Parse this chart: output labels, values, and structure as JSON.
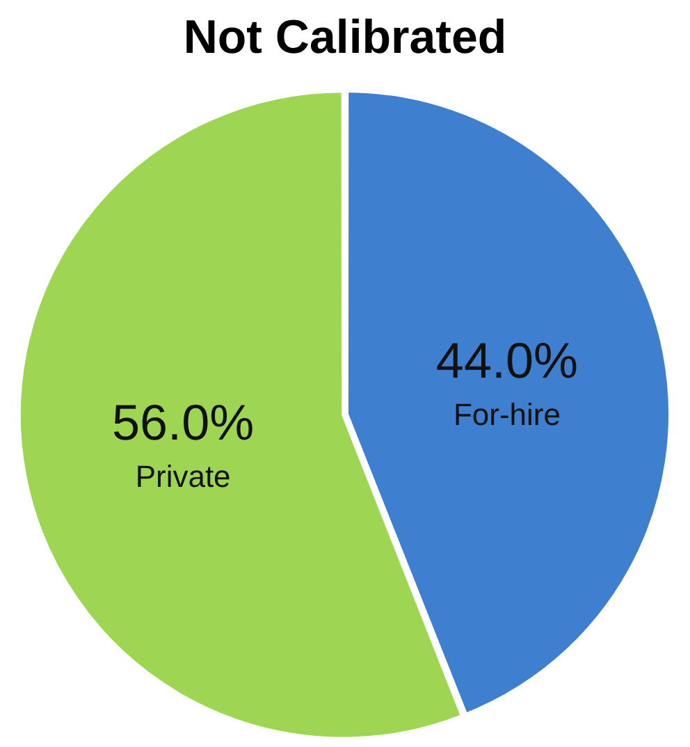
{
  "chart_data": {
    "type": "pie",
    "title": "Not Calibrated",
    "categories": [
      "For-hire",
      "Private"
    ],
    "values": [
      44.0,
      56.0
    ],
    "value_labels": [
      "44.0%",
      "56.0%"
    ],
    "colors": [
      "#3f7fd0",
      "#9ed654"
    ],
    "legend": false
  }
}
